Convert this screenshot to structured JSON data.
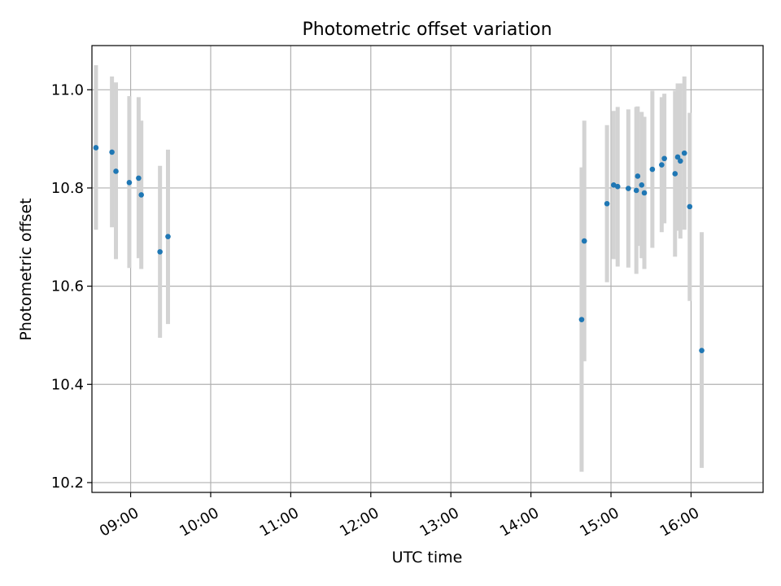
{
  "chart_data": {
    "type": "scatter",
    "title": "Photometric offset variation",
    "xlabel": "UTC time",
    "ylabel": "Photometric offset",
    "xlim": [
      "08:31",
      "16:54"
    ],
    "ylim": [
      10.18,
      11.09
    ],
    "x_ticks": [
      "09:00",
      "10:00",
      "11:00",
      "12:00",
      "13:00",
      "14:00",
      "15:00",
      "16:00"
    ],
    "y_ticks": [
      "10.2",
      "10.4",
      "10.6",
      "10.8",
      "11.0"
    ],
    "grid": true,
    "marker_color": "#1f77b4",
    "errorbar_color": "#d3d3d3",
    "points": [
      {
        "time": "08:34",
        "y": 10.882,
        "lo": 10.715,
        "hi": 11.05
      },
      {
        "time": "08:46",
        "y": 10.873,
        "lo": 10.72,
        "hi": 11.027
      },
      {
        "time": "08:49",
        "y": 10.834,
        "lo": 10.655,
        "hi": 11.015
      },
      {
        "time": "08:59",
        "y": 10.811,
        "lo": 10.637,
        "hi": 10.987
      },
      {
        "time": "09:06",
        "y": 10.82,
        "lo": 10.657,
        "hi": 10.985
      },
      {
        "time": "09:08",
        "y": 10.786,
        "lo": 10.635,
        "hi": 10.937
      },
      {
        "time": "09:22",
        "y": 10.67,
        "lo": 10.495,
        "hi": 10.845
      },
      {
        "time": "09:28",
        "y": 10.701,
        "lo": 10.523,
        "hi": 10.878
      },
      {
        "time": "14:38",
        "y": 10.532,
        "lo": 10.222,
        "hi": 10.842
      },
      {
        "time": "14:40",
        "y": 10.692,
        "lo": 10.447,
        "hi": 10.937
      },
      {
        "time": "14:57",
        "y": 10.768,
        "lo": 10.608,
        "hi": 10.928
      },
      {
        "time": "15:02",
        "y": 10.806,
        "lo": 10.655,
        "hi": 10.957
      },
      {
        "time": "15:05",
        "y": 10.803,
        "lo": 10.64,
        "hi": 10.965
      },
      {
        "time": "15:13",
        "y": 10.799,
        "lo": 10.638,
        "hi": 10.96
      },
      {
        "time": "15:19",
        "y": 10.795,
        "lo": 10.625,
        "hi": 10.965
      },
      {
        "time": "15:20",
        "y": 10.824,
        "lo": 10.682,
        "hi": 10.966
      },
      {
        "time": "15:23",
        "y": 10.806,
        "lo": 10.657,
        "hi": 10.955
      },
      {
        "time": "15:25",
        "y": 10.79,
        "lo": 10.635,
        "hi": 10.945
      },
      {
        "time": "15:31",
        "y": 10.838,
        "lo": 10.678,
        "hi": 10.998
      },
      {
        "time": "15:38",
        "y": 10.847,
        "lo": 10.71,
        "hi": 10.985
      },
      {
        "time": "15:40",
        "y": 10.86,
        "lo": 10.728,
        "hi": 10.992
      },
      {
        "time": "15:48",
        "y": 10.829,
        "lo": 10.66,
        "hi": 10.998
      },
      {
        "time": "15:50",
        "y": 10.863,
        "lo": 10.713,
        "hi": 11.013
      },
      {
        "time": "15:52",
        "y": 10.855,
        "lo": 10.697,
        "hi": 11.013
      },
      {
        "time": "15:55",
        "y": 10.871,
        "lo": 10.715,
        "hi": 11.027
      },
      {
        "time": "15:59",
        "y": 10.762,
        "lo": 10.57,
        "hi": 10.953
      },
      {
        "time": "16:08",
        "y": 10.469,
        "lo": 10.23,
        "hi": 10.71
      }
    ]
  }
}
